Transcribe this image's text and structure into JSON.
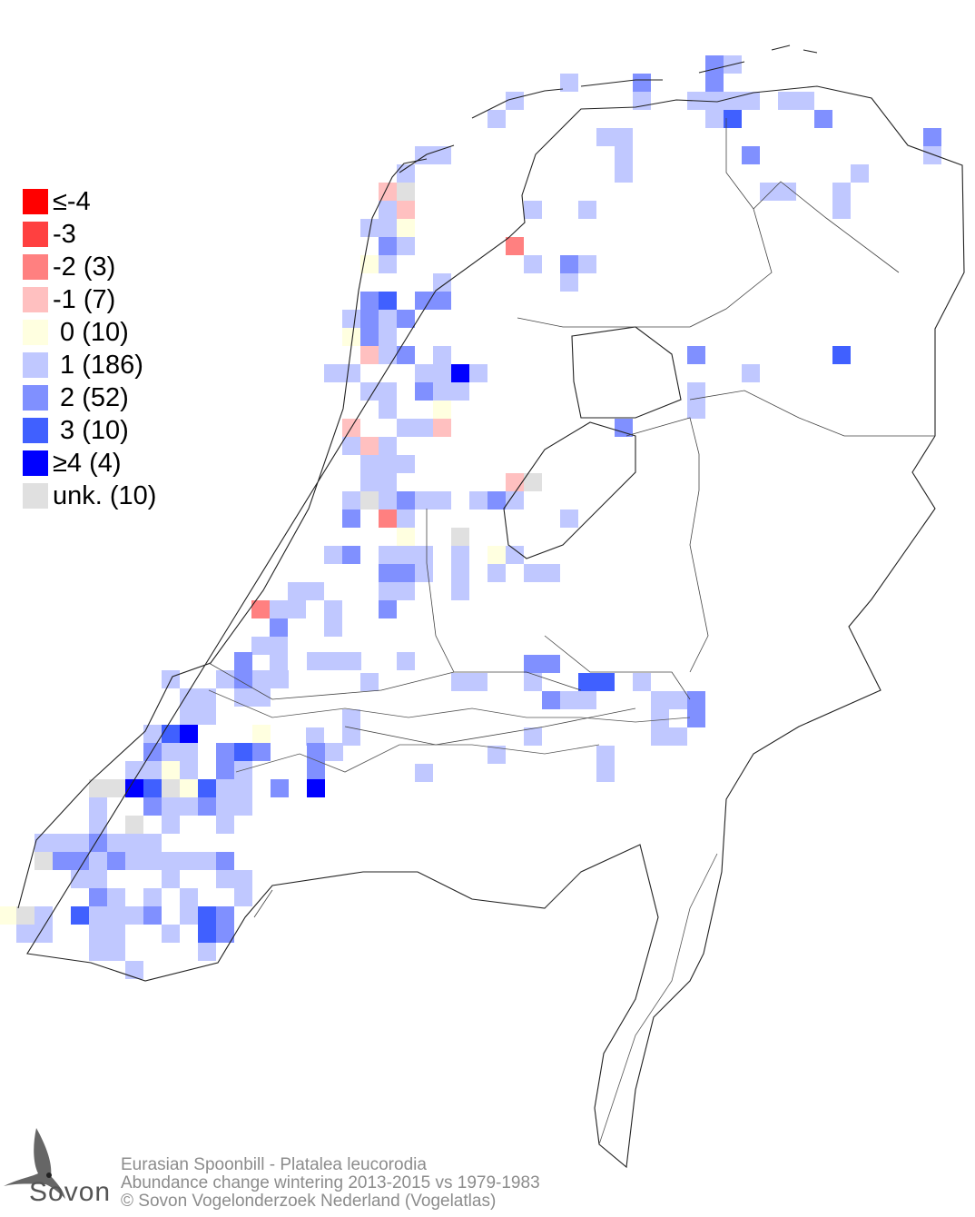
{
  "legend": {
    "items": [
      {
        "label": "≤-4",
        "color": "#ff0000"
      },
      {
        "label": "-3",
        "color": "#ff4040"
      },
      {
        "label": "-2 (3)",
        "color": "#ff8080"
      },
      {
        "label": "-1 (7)",
        "color": "#ffc0c0"
      },
      {
        "label": " 0 (10)",
        "color": "#ffffe0"
      },
      {
        "label": " 1 (186)",
        "color": "#c0c8ff"
      },
      {
        "label": " 2 (52)",
        "color": "#8090ff"
      },
      {
        "label": " 3 (10)",
        "color": "#4060ff"
      },
      {
        "label": "≥4 (4)",
        "color": "#0000ff"
      },
      {
        "label": "unk. (10)",
        "color": "#e0e0e0"
      }
    ]
  },
  "footer": {
    "species": "Eurasian Spoonbill - Platalea leucorodia",
    "subtitle": "Abundance change wintering  2013-2015 vs 1979-1983",
    "copyright": "© Sovon Vogelonderzoek Nederland (Vogelatlas)"
  },
  "logo": {
    "text": "Sovon"
  }
}
